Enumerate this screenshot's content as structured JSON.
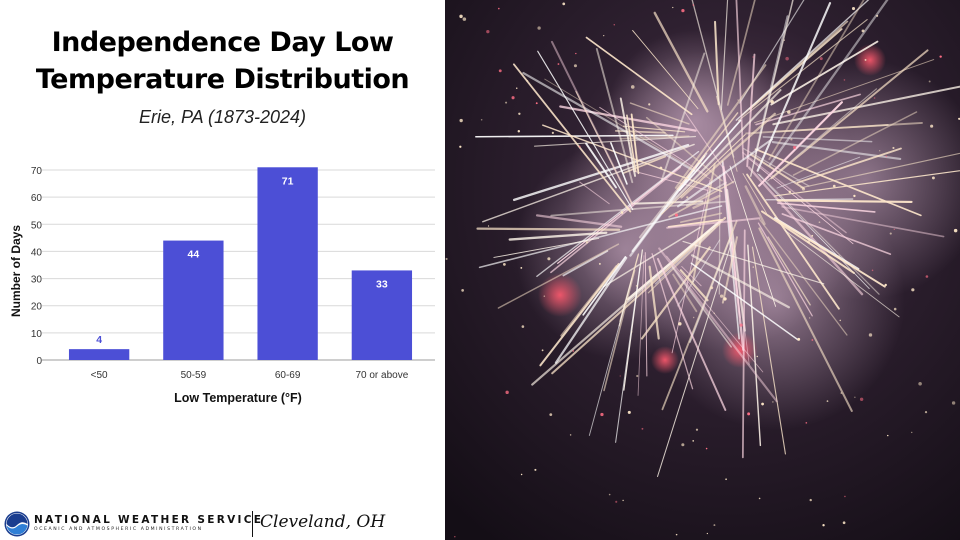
{
  "slide": {
    "title_line1": "Independence Day Low",
    "title_line2": "Temperature Distribution",
    "subtitle": "Erie, PA (1873-2024)"
  },
  "chart_data": {
    "type": "bar",
    "categories": [
      "<50",
      "50-59",
      "60-69",
      "70 or above"
    ],
    "values": [
      4,
      44,
      71,
      33
    ],
    "data_labels": [
      "4",
      "44",
      "71",
      "33"
    ],
    "xlabel": "Low Temperature (°F)",
    "ylabel": "Number of Days",
    "ylim": [
      0,
      70
    ],
    "yticks": [
      0,
      10,
      20,
      30,
      40,
      50,
      60,
      70
    ],
    "grid": true,
    "bar_color": "#4c4fd6",
    "label_inside_color": "#ffffff",
    "label_outside_color": "#4c4fd6"
  },
  "footer": {
    "agency": "NATIONAL WEATHER SERVICE",
    "agency_sub": "OCEANIC AND ATMOSPHERIC ADMINISTRATION",
    "office": "Cleveland, OH",
    "logo_icon": "noaa-logo-icon"
  },
  "photo": {
    "icon": "fireworks-photo"
  },
  "colors": {
    "accent": "#4c4fd6",
    "grid": "#d9d9d9",
    "night_sky": "#1c1420"
  }
}
